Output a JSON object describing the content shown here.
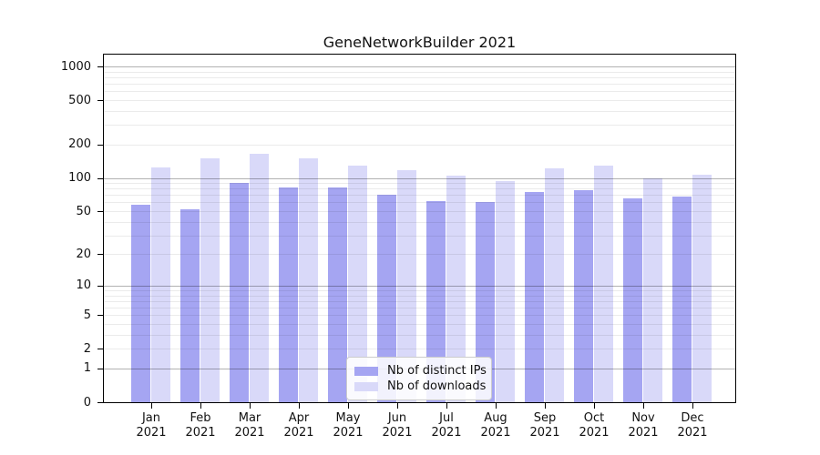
{
  "chart_data": {
    "type": "bar",
    "title": "GeneNetworkBuilder 2021",
    "x_categories": [
      "Jan 2021",
      "Feb 2021",
      "Mar 2021",
      "Apr 2021",
      "May 2021",
      "Jun 2021",
      "Jul 2021",
      "Aug 2021",
      "Sep 2021",
      "Oct 2021",
      "Nov 2021",
      "Dec 2021"
    ],
    "months": [
      {
        "month": "Jan",
        "year": "2021"
      },
      {
        "month": "Feb",
        "year": "2021"
      },
      {
        "month": "Mar",
        "year": "2021"
      },
      {
        "month": "Apr",
        "year": "2021"
      },
      {
        "month": "May",
        "year": "2021"
      },
      {
        "month": "Jun",
        "year": "2021"
      },
      {
        "month": "Jul",
        "year": "2021"
      },
      {
        "month": "Aug",
        "year": "2021"
      },
      {
        "month": "Sep",
        "year": "2021"
      },
      {
        "month": "Oct",
        "year": "2021"
      },
      {
        "month": "Nov",
        "year": "2021"
      },
      {
        "month": "Dec",
        "year": "2021"
      }
    ],
    "series": [
      {
        "name": "Nb of distinct IPs",
        "color": "#a5a5f2",
        "values": [
          57,
          52,
          90,
          82,
          82,
          71,
          62,
          60,
          74,
          77,
          65,
          68
        ]
      },
      {
        "name": "Nb of downloads",
        "color": "#d9d9f9",
        "values": [
          124,
          149,
          164,
          151,
          130,
          118,
          104,
          94,
          121,
          128,
          100,
          106
        ]
      }
    ],
    "y_axis": {
      "scale": "log1p",
      "ticks": [
        0,
        1,
        2,
        5,
        10,
        20,
        50,
        100,
        200,
        500,
        1000
      ],
      "gridlines_major": [
        1,
        10,
        100,
        1000
      ],
      "gridlines_minor": [
        2,
        3,
        4,
        5,
        6,
        7,
        8,
        9,
        20,
        30,
        40,
        50,
        60,
        70,
        80,
        90,
        200,
        300,
        400,
        500,
        600,
        700,
        800,
        900
      ],
      "ylim": [
        0,
        1300
      ]
    },
    "legend_position": "lower center",
    "colors": {
      "distinct_ips": "#a5a5f2",
      "downloads": "#d9d9f9",
      "gridline_major": "#b3b3b3",
      "gridline_minor": "#e8e8e8",
      "frame": "#000000"
    }
  }
}
